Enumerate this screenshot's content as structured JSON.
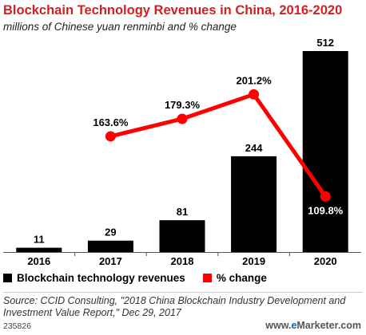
{
  "header": {
    "title": "Blockchain Technology Revenues in China, 2016-2020",
    "subtitle": "millions of Chinese yuan renminbi and % change"
  },
  "chart_data": {
    "type": "bar",
    "categories": [
      "2016",
      "2017",
      "2018",
      "2019",
      "2020"
    ],
    "series": [
      {
        "name": "Blockchain technology revenues",
        "type": "bar",
        "color": "#000000",
        "values": [
          11,
          29,
          81,
          244,
          512
        ],
        "labels": [
          "11",
          "29",
          "81",
          "244",
          "512"
        ]
      },
      {
        "name": "% change",
        "type": "line",
        "color": "#ff0000",
        "values": [
          null,
          163.6,
          179.3,
          201.2,
          109.8
        ],
        "labels": [
          "",
          "163.6%",
          "179.3%",
          "201.2%",
          "109.8%"
        ]
      }
    ],
    "ylim": [
      0,
      512
    ],
    "line_ylim": [
      60,
      240
    ],
    "grid": false,
    "legend": "bottom-left"
  },
  "legend": {
    "bar_label": "Blockchain technology revenues",
    "line_label": "% change",
    "bar_color": "#000000",
    "line_color": "#ff0000"
  },
  "footer": {
    "source": "Source: CCID Consulting, \"2018 China Blockchain Industry Development and Investment Value Report,\" Dec 29, 2017",
    "chart_id": "235826",
    "brand_prefix": "www.",
    "brand_e": "e",
    "brand_suffix": "Marketer.com"
  }
}
